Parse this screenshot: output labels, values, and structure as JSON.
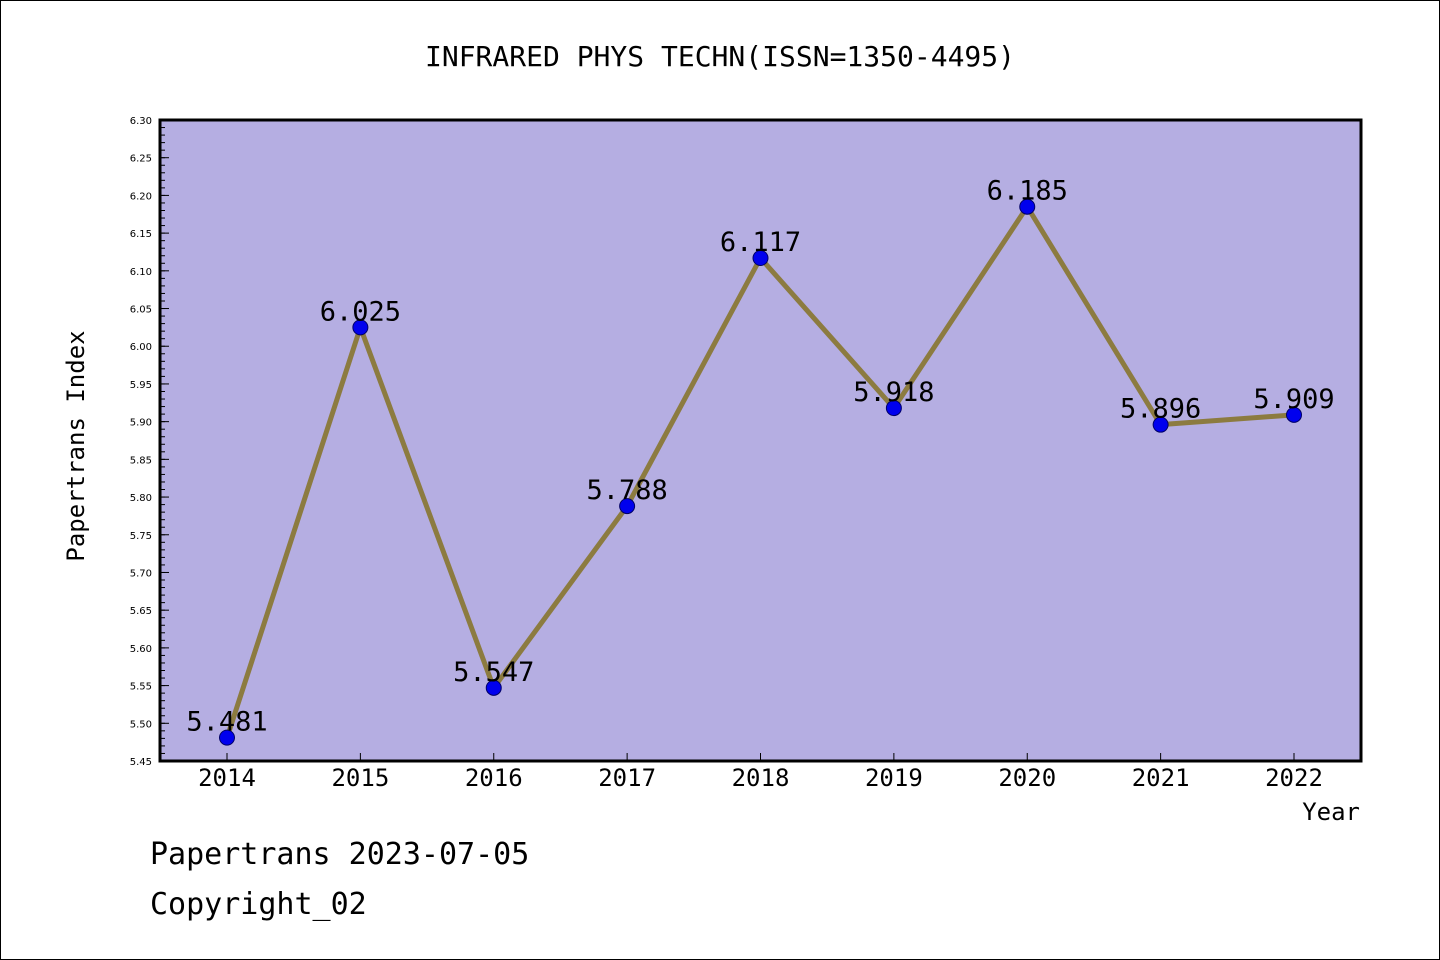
{
  "chart_data": {
    "type": "line",
    "title": "INFRARED PHYS TECHN(ISSN=1350-4495)",
    "xlabel": "Year",
    "ylabel": "Papertrans Index",
    "categories": [
      "2014",
      "2015",
      "2016",
      "2017",
      "2018",
      "2019",
      "2020",
      "2021",
      "2022"
    ],
    "series": [
      {
        "values": [
          5.481,
          6.025,
          5.547,
          5.788,
          6.117,
          5.918,
          6.185,
          5.896,
          5.909
        ],
        "labels": [
          "5.481",
          "6.025",
          "5.547",
          "5.788",
          "6.117",
          "5.918",
          "6.185",
          "5.896",
          "5.909"
        ]
      }
    ],
    "ylim": [
      5.45,
      6.3
    ],
    "yticks": [
      "5.45",
      "5.50",
      "5.55",
      "5.60",
      "5.65",
      "5.70",
      "5.75",
      "5.80",
      "5.85",
      "5.90",
      "5.95",
      "6.00",
      "6.05",
      "6.10",
      "6.15",
      "6.20",
      "6.25",
      "6.30"
    ],
    "grid": false,
    "colors": {
      "plot_background": "#b5aee2",
      "line": "#8c7b40",
      "marker": "#0000ee",
      "marker_edge": "#000066",
      "axis": "#000000"
    }
  },
  "footer": {
    "line1": "Papertrans 2023-07-05",
    "line2": "Copyright_02"
  }
}
